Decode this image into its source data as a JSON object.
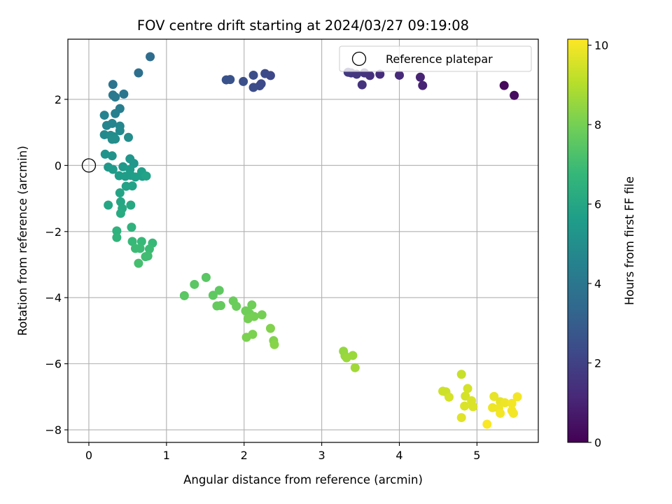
{
  "chart_data": {
    "type": "scatter",
    "title": "FOV centre drift starting at 2024/03/27 09:19:08",
    "xlabel": "Angular distance from reference (arcmin)",
    "ylabel": "Rotation from reference (arcmin)",
    "xlim": [
      -0.27,
      5.79
    ],
    "ylim": [
      -8.38,
      3.82
    ],
    "xticks": [
      0,
      1,
      2,
      3,
      4,
      5
    ],
    "yticks": [
      -8,
      -6,
      -4,
      -2,
      0,
      2
    ],
    "grid": true,
    "legend_position": "top-right",
    "reference": {
      "label": "Reference platepar",
      "x": 0,
      "y": 0
    },
    "colorbar": {
      "label": "Hours from first FF file",
      "min": 0,
      "max": 10.15,
      "ticks": [
        0,
        2,
        4,
        6,
        8,
        10
      ],
      "colormap": "viridis"
    },
    "points": [
      {
        "x": 5.35,
        "y": 2.42,
        "t": 0.2
      },
      {
        "x": 5.48,
        "y": 2.12,
        "t": 0.3
      },
      {
        "x": 4.3,
        "y": 2.42,
        "t": 1.0
      },
      {
        "x": 4.27,
        "y": 2.67,
        "t": 1.0
      },
      {
        "x": 4.0,
        "y": 2.73,
        "t": 1.2
      },
      {
        "x": 3.75,
        "y": 2.76,
        "t": 1.3
      },
      {
        "x": 3.62,
        "y": 2.72,
        "t": 1.4
      },
      {
        "x": 3.55,
        "y": 2.8,
        "t": 1.5
      },
      {
        "x": 3.52,
        "y": 2.44,
        "t": 1.5
      },
      {
        "x": 3.45,
        "y": 2.76,
        "t": 1.6
      },
      {
        "x": 3.38,
        "y": 2.8,
        "t": 1.6
      },
      {
        "x": 3.34,
        "y": 2.82,
        "t": 1.7
      },
      {
        "x": 2.34,
        "y": 2.72,
        "t": 2.2
      },
      {
        "x": 2.27,
        "y": 2.78,
        "t": 2.3
      },
      {
        "x": 2.22,
        "y": 2.47,
        "t": 2.3
      },
      {
        "x": 2.2,
        "y": 2.41,
        "t": 2.3
      },
      {
        "x": 2.12,
        "y": 2.36,
        "t": 2.4
      },
      {
        "x": 2.12,
        "y": 2.73,
        "t": 2.4
      },
      {
        "x": 1.99,
        "y": 2.54,
        "t": 2.5
      },
      {
        "x": 1.82,
        "y": 2.6,
        "t": 2.6
      },
      {
        "x": 1.77,
        "y": 2.59,
        "t": 2.6
      },
      {
        "x": 0.79,
        "y": 3.29,
        "t": 3.6
      },
      {
        "x": 0.64,
        "y": 2.8,
        "t": 3.7
      },
      {
        "x": 0.31,
        "y": 2.45,
        "t": 3.9
      },
      {
        "x": 0.45,
        "y": 2.16,
        "t": 4.0
      },
      {
        "x": 0.31,
        "y": 2.13,
        "t": 4.1
      },
      {
        "x": 0.34,
        "y": 2.07,
        "t": 4.1
      },
      {
        "x": 0.4,
        "y": 1.72,
        "t": 4.3
      },
      {
        "x": 0.34,
        "y": 1.57,
        "t": 4.4
      },
      {
        "x": 0.2,
        "y": 1.52,
        "t": 4.5
      },
      {
        "x": 0.23,
        "y": 1.21,
        "t": 4.6
      },
      {
        "x": 0.3,
        "y": 1.27,
        "t": 4.6
      },
      {
        "x": 0.4,
        "y": 1.19,
        "t": 4.7
      },
      {
        "x": 0.4,
        "y": 1.05,
        "t": 4.8
      },
      {
        "x": 0.2,
        "y": 0.93,
        "t": 4.8
      },
      {
        "x": 0.28,
        "y": 0.91,
        "t": 4.9
      },
      {
        "x": 0.32,
        "y": 0.87,
        "t": 4.9
      },
      {
        "x": 0.3,
        "y": 0.79,
        "t": 5.0
      },
      {
        "x": 0.34,
        "y": 0.8,
        "t": 5.0
      },
      {
        "x": 0.51,
        "y": 0.85,
        "t": 5.0
      },
      {
        "x": 0.21,
        "y": 0.34,
        "t": 5.2
      },
      {
        "x": 0.3,
        "y": 0.29,
        "t": 5.2
      },
      {
        "x": 0.53,
        "y": 0.2,
        "t": 5.3
      },
      {
        "x": 0.58,
        "y": 0.06,
        "t": 5.3
      },
      {
        "x": 0.44,
        "y": -0.04,
        "t": 5.4
      },
      {
        "x": 0.25,
        "y": -0.05,
        "t": 5.4
      },
      {
        "x": 0.31,
        "y": -0.12,
        "t": 5.5
      },
      {
        "x": 0.53,
        "y": -0.12,
        "t": 5.5
      },
      {
        "x": 0.39,
        "y": -0.31,
        "t": 5.6
      },
      {
        "x": 0.47,
        "y": -0.33,
        "t": 5.6
      },
      {
        "x": 0.54,
        "y": -0.3,
        "t": 5.6
      },
      {
        "x": 0.6,
        "y": -0.35,
        "t": 5.7
      },
      {
        "x": 0.68,
        "y": -0.19,
        "t": 5.7
      },
      {
        "x": 0.69,
        "y": -0.33,
        "t": 5.7
      },
      {
        "x": 0.74,
        "y": -0.32,
        "t": 5.8
      },
      {
        "x": 0.48,
        "y": -0.63,
        "t": 5.8
      },
      {
        "x": 0.56,
        "y": -0.62,
        "t": 5.8
      },
      {
        "x": 0.4,
        "y": -0.83,
        "t": 5.9
      },
      {
        "x": 0.25,
        "y": -1.2,
        "t": 6.0
      },
      {
        "x": 0.41,
        "y": -1.1,
        "t": 6.0
      },
      {
        "x": 0.43,
        "y": -1.3,
        "t": 6.1
      },
      {
        "x": 0.54,
        "y": -1.2,
        "t": 6.1
      },
      {
        "x": 0.41,
        "y": -1.45,
        "t": 6.2
      },
      {
        "x": 0.55,
        "y": -1.87,
        "t": 6.5
      },
      {
        "x": 0.36,
        "y": -1.98,
        "t": 6.5
      },
      {
        "x": 0.36,
        "y": -2.18,
        "t": 6.6
      },
      {
        "x": 0.56,
        "y": -2.3,
        "t": 6.8
      },
      {
        "x": 0.68,
        "y": -2.3,
        "t": 6.8
      },
      {
        "x": 0.82,
        "y": -2.35,
        "t": 6.8
      },
      {
        "x": 0.6,
        "y": -2.51,
        "t": 6.9
      },
      {
        "x": 0.66,
        "y": -2.51,
        "t": 6.9
      },
      {
        "x": 0.78,
        "y": -2.53,
        "t": 6.9
      },
      {
        "x": 0.76,
        "y": -2.74,
        "t": 7.0
      },
      {
        "x": 0.73,
        "y": -2.76,
        "t": 7.0
      },
      {
        "x": 0.64,
        "y": -2.96,
        "t": 7.1
      },
      {
        "x": 1.23,
        "y": -3.94,
        "t": 7.5
      },
      {
        "x": 1.36,
        "y": -3.6,
        "t": 7.5
      },
      {
        "x": 1.51,
        "y": -3.39,
        "t": 7.5
      },
      {
        "x": 1.6,
        "y": -3.93,
        "t": 7.6
      },
      {
        "x": 1.68,
        "y": -3.78,
        "t": 7.6
      },
      {
        "x": 1.65,
        "y": -4.25,
        "t": 7.7
      },
      {
        "x": 1.7,
        "y": -4.24,
        "t": 7.7
      },
      {
        "x": 1.86,
        "y": -4.1,
        "t": 7.8
      },
      {
        "x": 1.9,
        "y": -4.26,
        "t": 7.8
      },
      {
        "x": 2.02,
        "y": -4.4,
        "t": 7.9
      },
      {
        "x": 2.07,
        "y": -4.48,
        "t": 7.9
      },
      {
        "x": 2.1,
        "y": -4.22,
        "t": 7.9
      },
      {
        "x": 2.05,
        "y": -4.64,
        "t": 8.0
      },
      {
        "x": 2.13,
        "y": -4.57,
        "t": 8.0
      },
      {
        "x": 2.23,
        "y": -4.52,
        "t": 8.0
      },
      {
        "x": 2.03,
        "y": -5.2,
        "t": 8.1
      },
      {
        "x": 2.11,
        "y": -5.11,
        "t": 8.1
      },
      {
        "x": 2.34,
        "y": -4.93,
        "t": 8.2
      },
      {
        "x": 2.38,
        "y": -5.3,
        "t": 8.2
      },
      {
        "x": 2.39,
        "y": -5.42,
        "t": 8.3
      },
      {
        "x": 3.28,
        "y": -5.62,
        "t": 8.5
      },
      {
        "x": 3.3,
        "y": -5.76,
        "t": 8.5
      },
      {
        "x": 3.32,
        "y": -5.82,
        "t": 8.6
      },
      {
        "x": 3.4,
        "y": -5.75,
        "t": 8.6
      },
      {
        "x": 3.43,
        "y": -6.12,
        "t": 8.7
      },
      {
        "x": 4.8,
        "y": -6.32,
        "t": 9.3
      },
      {
        "x": 4.56,
        "y": -6.83,
        "t": 9.4
      },
      {
        "x": 4.6,
        "y": -6.85,
        "t": 9.4
      },
      {
        "x": 4.64,
        "y": -7.01,
        "t": 9.5
      },
      {
        "x": 4.88,
        "y": -6.75,
        "t": 9.5
      },
      {
        "x": 4.85,
        "y": -6.98,
        "t": 9.5
      },
      {
        "x": 4.93,
        "y": -7.12,
        "t": 9.6
      },
      {
        "x": 4.95,
        "y": -7.3,
        "t": 9.6
      },
      {
        "x": 4.84,
        "y": -7.28,
        "t": 9.6
      },
      {
        "x": 4.8,
        "y": -7.63,
        "t": 9.7
      },
      {
        "x": 5.22,
        "y": -6.99,
        "t": 9.8
      },
      {
        "x": 5.3,
        "y": -7.15,
        "t": 9.8
      },
      {
        "x": 5.36,
        "y": -7.18,
        "t": 9.9
      },
      {
        "x": 5.2,
        "y": -7.33,
        "t": 9.9
      },
      {
        "x": 5.28,
        "y": -7.35,
        "t": 9.9
      },
      {
        "x": 5.3,
        "y": -7.5,
        "t": 10.0
      },
      {
        "x": 5.45,
        "y": -7.2,
        "t": 10.0
      },
      {
        "x": 5.45,
        "y": -7.42,
        "t": 10.0
      },
      {
        "x": 5.52,
        "y": -7.0,
        "t": 10.0
      },
      {
        "x": 5.47,
        "y": -7.5,
        "t": 10.0
      },
      {
        "x": 5.13,
        "y": -7.83,
        "t": 10.1
      }
    ]
  }
}
